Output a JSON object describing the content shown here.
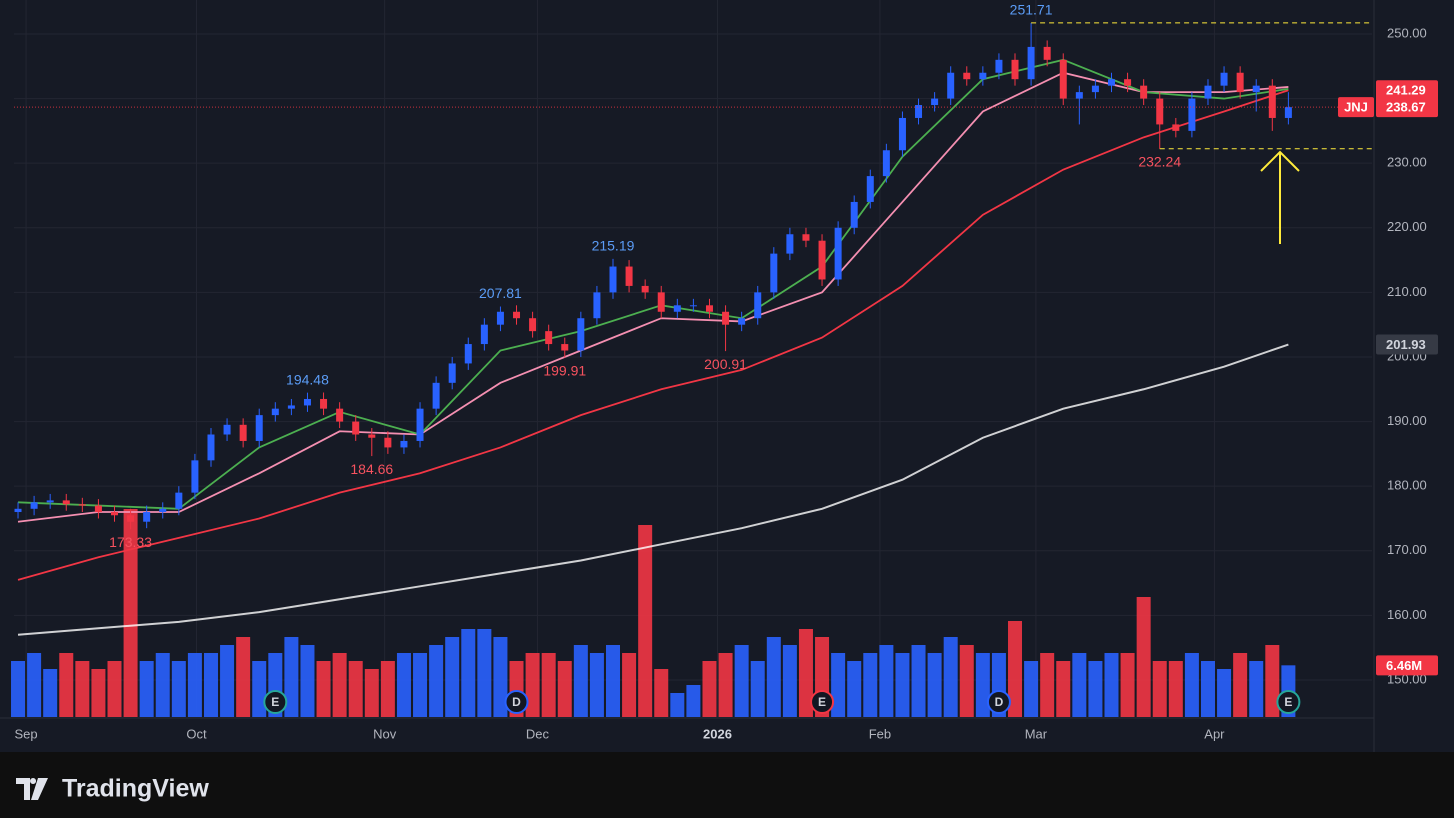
{
  "chart_data": {
    "type": "candlestick",
    "symbol": "JNJ",
    "brand": "TradingView",
    "up_color": "#2962ff",
    "down_color": "#f23645",
    "grid": true,
    "xlim": [
      -0.25,
      84.2
    ],
    "xticks": [
      {
        "value": 0.5,
        "label": "Sep"
      },
      {
        "value": 11.1,
        "label": "Oct"
      },
      {
        "value": 22.8,
        "label": "Nov"
      },
      {
        "value": 32.3,
        "label": "Dec"
      },
      {
        "value": 43.5,
        "label": "2026"
      },
      {
        "value": 53.6,
        "label": "Feb"
      },
      {
        "value": 63.3,
        "label": "Mar"
      },
      {
        "value": 74.4,
        "label": "Apr"
      }
    ],
    "ylim": [
      144.27,
      255.26
    ],
    "yticks": [
      {
        "value": 150,
        "label": "150.00"
      },
      {
        "value": 160,
        "label": "160.00"
      },
      {
        "value": 170,
        "label": "170.00"
      },
      {
        "value": 180,
        "label": "180.00"
      },
      {
        "value": 190,
        "label": "190.00"
      },
      {
        "value": 200,
        "label": "200.00"
      },
      {
        "value": 210,
        "label": "210.00"
      },
      {
        "value": 220,
        "label": "220.00"
      },
      {
        "value": 230,
        "label": "230.00"
      },
      {
        "value": 240,
        "label": "240.00"
      },
      {
        "value": 250,
        "label": "250.00"
      }
    ],
    "open": [
      176,
      176.5,
      177.5,
      177.8,
      177.2,
      177,
      176,
      175.5,
      174.5,
      176,
      176.5,
      179,
      184,
      188,
      189.5,
      187,
      191,
      192,
      192.5,
      193.5,
      192,
      190,
      188,
      187.5,
      186,
      187,
      192,
      196,
      199,
      202,
      205,
      207,
      206,
      204,
      202,
      201,
      206,
      210,
      214,
      211,
      210,
      207,
      208,
      208,
      207,
      205,
      206,
      210,
      216,
      219,
      218,
      212,
      220,
      224,
      228,
      232,
      237,
      239,
      240,
      244,
      243,
      244,
      246,
      243,
      248,
      246,
      240,
      241,
      242,
      243,
      242,
      240,
      236,
      235,
      240,
      242,
      244,
      241,
      242,
      237
    ],
    "high": [
      177.5,
      178.5,
      178.8,
      178.8,
      178.2,
      178,
      177,
      176.5,
      177,
      177.5,
      180,
      185,
      189,
      190.5,
      190.5,
      192,
      193,
      193.5,
      194.48,
      194.5,
      193,
      191,
      189,
      188.5,
      188,
      193,
      197,
      200,
      203,
      206,
      207.81,
      208,
      207,
      205,
      203,
      207,
      211,
      215.19,
      215,
      212,
      211,
      209,
      209,
      209,
      208,
      207,
      211,
      217,
      220,
      220,
      219,
      221,
      225,
      229,
      233,
      238,
      240,
      241,
      245,
      245,
      245,
      247,
      247,
      251.71,
      249,
      247,
      242,
      243,
      244,
      244,
      243,
      241,
      237,
      241,
      243,
      245,
      245,
      243,
      243,
      241
    ],
    "low": [
      175,
      175.5,
      176.5,
      176.2,
      176,
      175,
      174.5,
      173.33,
      173.5,
      175,
      175.5,
      178,
      183,
      187,
      186,
      186,
      190,
      191,
      191.5,
      191,
      189,
      187,
      184.66,
      185,
      185,
      186,
      191,
      195,
      198,
      201,
      204,
      205,
      203,
      201,
      199.91,
      200,
      205,
      209,
      210,
      209,
      206,
      206,
      207,
      206,
      200.91,
      204,
      205,
      209,
      215,
      217,
      211,
      211,
      219,
      223,
      227,
      231,
      236,
      238,
      239,
      242,
      242,
      243,
      242,
      242,
      245,
      239,
      236,
      240,
      241,
      241,
      239,
      232.24,
      234,
      234,
      239,
      241,
      240,
      238,
      235,
      236
    ],
    "close": [
      176.5,
      177.5,
      177.8,
      177.2,
      177,
      176,
      175.5,
      174.5,
      176,
      176.5,
      179,
      184,
      188,
      189.5,
      187,
      191,
      192,
      192.5,
      193.5,
      192,
      190,
      188,
      187.5,
      186,
      187,
      192,
      196,
      199,
      202,
      205,
      207,
      206,
      204,
      202,
      201,
      206,
      210,
      214,
      211,
      210,
      207,
      208,
      208,
      207,
      205,
      206,
      210,
      216,
      219,
      218,
      212,
      220,
      224,
      228,
      232,
      237,
      239,
      240,
      244,
      243,
      244,
      246,
      243,
      248,
      246,
      240,
      241,
      242,
      243,
      242,
      240,
      236,
      235,
      240,
      242,
      244,
      241,
      242,
      237,
      238.67
    ],
    "high_labels": [
      18,
      30,
      37,
      63
    ],
    "low_labels": [
      7,
      22,
      34,
      44,
      71
    ],
    "level_lines": [
      {
        "list": "high",
        "index": 63
      },
      {
        "list": "low",
        "index": 71
      }
    ],
    "ma": [
      {
        "color": "#ffffff",
        "price_line": true,
        "x": [
          0,
          5,
          10,
          15,
          20,
          25,
          30,
          35,
          40,
          45,
          50,
          55,
          60,
          65,
          70,
          75,
          79
        ],
        "values": [
          157,
          158,
          159,
          160.5,
          162.5,
          164.5,
          166.5,
          168.5,
          171,
          173.5,
          176.5,
          181,
          187.5,
          192,
          195,
          198.5,
          201.93
        ]
      },
      {
        "color": "#f23645",
        "price_line": true,
        "x": [
          0,
          5,
          10,
          15,
          20,
          25,
          30,
          35,
          40,
          45,
          50,
          55,
          60,
          65,
          70,
          75,
          79
        ],
        "values": [
          165.5,
          169,
          172,
          175,
          179,
          182,
          186,
          191,
          195,
          198,
          203,
          211,
          222,
          229,
          234,
          238,
          241.29
        ]
      },
      {
        "color": "#f48fb1",
        "price_line": false,
        "x": [
          0,
          5,
          10,
          15,
          20,
          25,
          30,
          35,
          40,
          45,
          50,
          55,
          60,
          65,
          70,
          75,
          79
        ],
        "values": [
          174.5,
          176,
          176,
          182,
          188.5,
          188,
          196,
          201,
          206,
          205.5,
          210,
          224,
          238,
          244,
          241,
          241,
          241.8
        ]
      },
      {
        "color": "#4caf50",
        "price_line": false,
        "x": [
          0,
          5,
          10,
          15,
          20,
          25,
          30,
          35,
          40,
          45,
          50,
          55,
          60,
          65,
          70,
          75,
          79
        ],
        "values": [
          177.5,
          177,
          176.5,
          186,
          191.5,
          188,
          201,
          204,
          208,
          206,
          214,
          231,
          243,
          246,
          241,
          240,
          241.5
        ]
      }
    ],
    "volume": {
      "ylim": [
        0,
        30
      ],
      "values": [
        7,
        8,
        6,
        8,
        7,
        6,
        7,
        26,
        7,
        8,
        7,
        8,
        8,
        9,
        10,
        7,
        8,
        10,
        9,
        7,
        8,
        7,
        6,
        7,
        8,
        8,
        9,
        10,
        11,
        11,
        10,
        7,
        8,
        8,
        7,
        9,
        8,
        9,
        8,
        24,
        6,
        3,
        4,
        7,
        8,
        9,
        7,
        10,
        9,
        11,
        10,
        8,
        7,
        8,
        9,
        8,
        9,
        8,
        10,
        9,
        8,
        8,
        12,
        7,
        8,
        7,
        8,
        7,
        8,
        8,
        15,
        7,
        7,
        8,
        7,
        6,
        8,
        7,
        9,
        6.46
      ],
      "last_value_label": "6.46M"
    },
    "events": [
      {
        "index": 16,
        "label": "E",
        "color": "#26a69a"
      },
      {
        "index": 31,
        "label": "D",
        "color": "#2962ff"
      },
      {
        "index": 50,
        "label": "E",
        "color": "#f23645"
      },
      {
        "index": 61,
        "label": "D",
        "color": "#2962ff"
      },
      {
        "index": 79,
        "label": "E",
        "color": "#26a69a"
      }
    ]
  }
}
